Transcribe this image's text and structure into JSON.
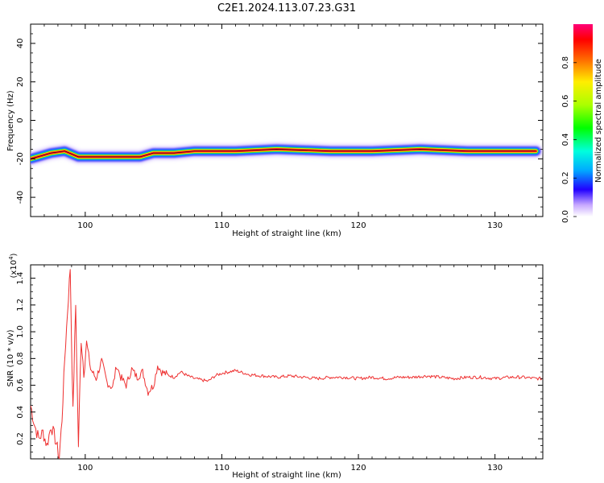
{
  "title": "C2E1.2024.113.07.23.G31",
  "chart_data": [
    {
      "type": "heatmap",
      "xlabel": "Height of straight line (km)",
      "ylabel": "Frequency (Hz)",
      "xlim": [
        96,
        133.5
      ],
      "ylim": [
        -50,
        50
      ],
      "xticks": [
        100,
        110,
        120,
        130
      ],
      "yticks": [
        -40,
        -20,
        0,
        20,
        40
      ],
      "colorbar": {
        "label": "Normalized spectral amplitude",
        "range": [
          0,
          1
        ],
        "ticks": [
          "0.0",
          "0.2",
          "0.4",
          "0.6",
          "0.8"
        ]
      },
      "ridge": [
        {
          "x": 96.0,
          "y": -20
        },
        {
          "x": 96.5,
          "y": -19
        },
        {
          "x": 97.5,
          "y": -17
        },
        {
          "x": 98.5,
          "y": -16
        },
        {
          "x": 99.5,
          "y": -19
        },
        {
          "x": 100.5,
          "y": -19
        },
        {
          "x": 102.0,
          "y": -19
        },
        {
          "x": 104.0,
          "y": -19
        },
        {
          "x": 105.0,
          "y": -17
        },
        {
          "x": 106.5,
          "y": -17
        },
        {
          "x": 108.0,
          "y": -16
        },
        {
          "x": 111.0,
          "y": -16
        },
        {
          "x": 114.0,
          "y": -15
        },
        {
          "x": 118.0,
          "y": -16
        },
        {
          "x": 121.0,
          "y": -16
        },
        {
          "x": 124.5,
          "y": -15
        },
        {
          "x": 128.0,
          "y": -16
        },
        {
          "x": 131.0,
          "y": -16
        },
        {
          "x": 133.0,
          "y": -16
        }
      ]
    },
    {
      "type": "line",
      "xlabel": "Height of straight line (km)",
      "ylabel": "SNR (10 * v/v)",
      "multiplier_label": "(x10",
      "multiplier_exp": "4",
      "multiplier_close": ")",
      "xlim": [
        96,
        133.5
      ],
      "ylim": [
        0.05,
        1.5
      ],
      "xticks": [
        100,
        110,
        120,
        130
      ],
      "yticks": [
        "0.2",
        "0.4",
        "0.6",
        "0.8",
        "1.0",
        "1.2",
        "1.4"
      ],
      "series": [
        {
          "color": "#ee3030",
          "x": [
            96.0,
            96.3,
            96.6,
            96.9,
            97.2,
            97.5,
            97.8,
            98.1,
            98.3,
            98.5,
            98.7,
            98.9,
            99.1,
            99.3,
            99.5,
            99.7,
            99.9,
            100.1,
            100.4,
            100.8,
            101.2,
            101.6,
            102.0,
            102.3,
            102.6,
            103.0,
            103.4,
            103.8,
            104.2,
            104.6,
            105.0,
            105.3,
            105.6,
            106.0,
            106.5,
            107.0,
            107.5,
            108.0,
            108.5,
            109.0,
            109.5,
            110.0,
            110.5,
            111.0,
            112.0,
            113.0,
            114.0,
            115.0,
            116.0,
            117.0,
            118.0,
            119.0,
            120.0,
            121.0,
            122.0,
            123.0,
            124.0,
            125.0,
            126.0,
            127.0,
            128.0,
            129.0,
            130.0,
            131.0,
            132.0,
            133.0,
            133.5
          ],
          "values": [
            0.45,
            0.3,
            0.2,
            0.25,
            0.15,
            0.3,
            0.2,
            0.06,
            0.35,
            0.8,
            1.15,
            1.48,
            0.4,
            1.2,
            0.15,
            0.95,
            0.7,
            0.92,
            0.72,
            0.65,
            0.78,
            0.62,
            0.58,
            0.75,
            0.66,
            0.6,
            0.72,
            0.66,
            0.7,
            0.55,
            0.6,
            0.75,
            0.7,
            0.68,
            0.66,
            0.7,
            0.67,
            0.65,
            0.64,
            0.63,
            0.67,
            0.69,
            0.7,
            0.71,
            0.68,
            0.67,
            0.66,
            0.67,
            0.66,
            0.65,
            0.66,
            0.66,
            0.65,
            0.66,
            0.65,
            0.66,
            0.66,
            0.67,
            0.66,
            0.65,
            0.66,
            0.66,
            0.65,
            0.66,
            0.66,
            0.65,
            0.65
          ]
        }
      ]
    }
  ]
}
